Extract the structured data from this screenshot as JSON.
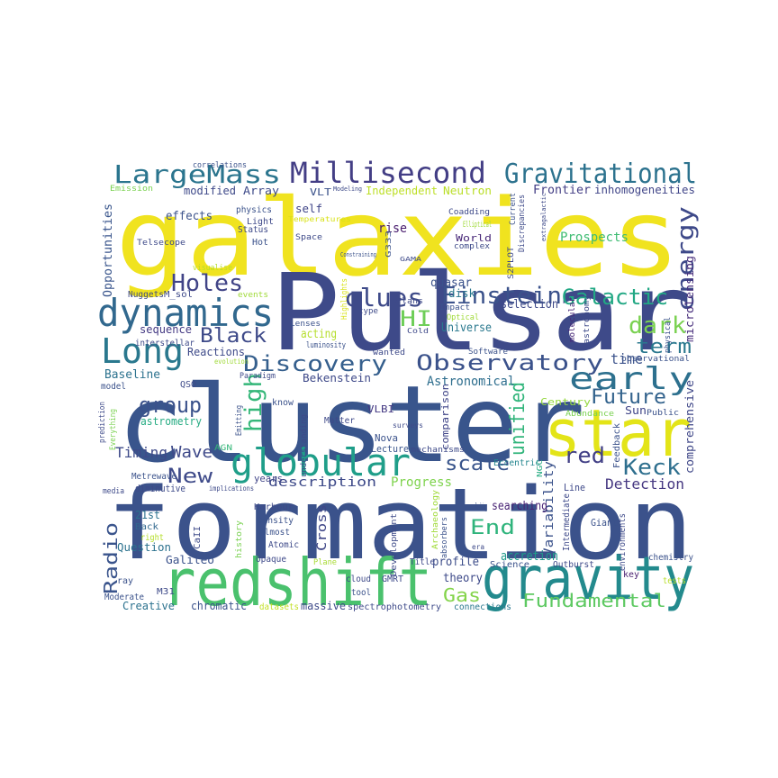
{
  "words": [
    {
      "text": "galaxies",
      "color": "#f0e31f"
    },
    {
      "text": "Pulsar",
      "color": "#3e4a89"
    },
    {
      "text": "cluster",
      "color": "#39558c"
    },
    {
      "text": "formation",
      "color": "#3b528b"
    },
    {
      "text": "redshift",
      "color": "#4ac16d"
    },
    {
      "text": "gravity",
      "color": "#238a8d"
    },
    {
      "text": "star",
      "color": "#e3e418"
    },
    {
      "text": "globular",
      "color": "#1f9e89"
    },
    {
      "text": "Millisecond",
      "color": "#433e85"
    },
    {
      "text": "Gravitational",
      "color": "#2c728e"
    },
    {
      "text": "LargeMass",
      "color": "#2b758e"
    },
    {
      "text": "dynamics",
      "color": "#31688e"
    },
    {
      "text": "Long",
      "color": "#2a788e"
    },
    {
      "text": "Einstein",
      "color": "#3b528b"
    },
    {
      "text": "Galactic",
      "color": "#22a884"
    },
    {
      "text": "Holes",
      "color": "#414487"
    },
    {
      "text": "clues",
      "color": "#3e4a89"
    },
    {
      "text": "early",
      "color": "#2d708e"
    },
    {
      "text": "energy",
      "color": "#3e4989"
    },
    {
      "text": "Observatory",
      "color": "#3b528b"
    },
    {
      "text": "Discovery",
      "color": "#355f8d"
    },
    {
      "text": "Black",
      "color": "#3e4a89"
    },
    {
      "text": "dark",
      "color": "#7ad151"
    },
    {
      "text": "term",
      "color": "#2a788e"
    },
    {
      "text": "HI",
      "color": "#6ece58"
    },
    {
      "text": "high",
      "color": "#35b779"
    },
    {
      "text": "group",
      "color": "#3b528b"
    },
    {
      "text": "Future",
      "color": "#33638d"
    },
    {
      "text": "Keck",
      "color": "#2e6f8e"
    },
    {
      "text": "red",
      "color": "#424086"
    },
    {
      "text": "New",
      "color": "#3e4a89"
    },
    {
      "text": "scale",
      "color": "#39558c"
    },
    {
      "text": "unified",
      "color": "#31b57b"
    },
    {
      "text": "Wave",
      "color": "#3e4989"
    },
    {
      "text": "Timing",
      "color": "#3e4a89"
    },
    {
      "text": "Detection",
      "color": "#453781"
    },
    {
      "text": "End",
      "color": "#2fb47c"
    },
    {
      "text": "Radio",
      "color": "#3a548c"
    },
    {
      "text": "Fundamental",
      "color": "#5ec962"
    },
    {
      "text": "Gas",
      "color": "#84d44b"
    },
    {
      "text": "Progress",
      "color": "#7fd34e"
    },
    {
      "text": "description",
      "color": "#3e4a89"
    },
    {
      "text": "Astronomical",
      "color": "#2e6e8e"
    },
    {
      "text": "Baseline",
      "color": "#2c728e"
    },
    {
      "text": "Cross",
      "color": "#3f4788"
    },
    {
      "text": "comparison",
      "color": "#404588"
    },
    {
      "text": "Variability",
      "color": "#3b528b"
    },
    {
      "text": "accretion",
      "color": "#1f9a8a"
    },
    {
      "text": "profile",
      "color": "#3d4d8a"
    },
    {
      "text": "searching",
      "color": "#482374"
    },
    {
      "text": "selection",
      "color": "#3e4989"
    },
    {
      "text": "Universe",
      "color": "#2a788e"
    },
    {
      "text": "quasar",
      "color": "#3b528b"
    },
    {
      "text": "disk",
      "color": "#2a788e"
    },
    {
      "text": "time",
      "color": "#3b528b"
    },
    {
      "text": "Prospects",
      "color": "#3fbc73"
    },
    {
      "text": "Frontier",
      "color": "#433e85"
    },
    {
      "text": "inhomogeneities",
      "color": "#404588"
    },
    {
      "text": "Opportunities",
      "color": "#39558c"
    },
    {
      "text": "Reactions",
      "color": "#3e4a89"
    },
    {
      "text": "sequence",
      "color": "#443983"
    },
    {
      "text": "Bekenstein",
      "color": "#3e4989"
    },
    {
      "text": "acting",
      "color": "#b5de2b"
    },
    {
      "text": "self",
      "color": "#404588"
    },
    {
      "text": "Independent",
      "color": "#bddf26"
    },
    {
      "text": "Neutron",
      "color": "#bade28"
    },
    {
      "text": "VLT",
      "color": "#3b528b"
    },
    {
      "text": "modified",
      "color": "#3e4989"
    },
    {
      "text": "Array",
      "color": "#3e4a89"
    },
    {
      "text": "effects",
      "color": "#3b528b"
    },
    {
      "text": "rise",
      "color": "#481b6d"
    },
    {
      "text": "World",
      "color": "#482878"
    },
    {
      "text": "Century",
      "color": "#95d840"
    },
    {
      "text": "Sun",
      "color": "#404588"
    },
    {
      "text": "comprehensive",
      "color": "#3f4788"
    },
    {
      "text": "microlensing",
      "color": "#472d7b"
    },
    {
      "text": "astrometry",
      "color": "#25ab82"
    },
    {
      "text": "VLBI",
      "color": "#443983"
    },
    {
      "text": "Nova",
      "color": "#3b528b"
    },
    {
      "text": "Lecture",
      "color": "#39558c"
    },
    {
      "text": "mechanisms",
      "color": "#3e4a89"
    },
    {
      "text": "Eccentric",
      "color": "#24868e"
    },
    {
      "text": "Line",
      "color": "#3e4989"
    },
    {
      "text": "Feedback",
      "color": "#3b528b"
    },
    {
      "text": "years",
      "color": "#404588"
    },
    {
      "text": "21st",
      "color": "#2c728e"
    },
    {
      "text": "Back",
      "color": "#31688e"
    },
    {
      "text": "right",
      "color": "#b5de2b"
    },
    {
      "text": "Question",
      "color": "#2c728e"
    },
    {
      "text": "Galileo",
      "color": "#3b528b"
    },
    {
      "text": "CaII",
      "color": "#3e4a89"
    },
    {
      "text": "Harbour",
      "color": "#3e4a89"
    },
    {
      "text": "Density",
      "color": "#3b528b"
    },
    {
      "text": "Almost",
      "color": "#3b528b"
    },
    {
      "text": "Atomic",
      "color": "#3e4a89"
    },
    {
      "text": "Opaque",
      "color": "#3e4989"
    },
    {
      "text": "Plane",
      "color": "#a8db34"
    },
    {
      "text": "cloud",
      "color": "#3e4a89"
    },
    {
      "text": "GMRT",
      "color": "#3e4a89"
    },
    {
      "text": "theory",
      "color": "#3e4a89"
    },
    {
      "text": "tool",
      "color": "#3b528b"
    },
    {
      "text": "Title",
      "color": "#3e4989"
    },
    {
      "text": "Resolving",
      "color": "#3b528b"
    },
    {
      "text": "Science",
      "color": "#3b528b"
    },
    {
      "text": "Intermediate",
      "color": "#3e4989"
    },
    {
      "text": "Giant",
      "color": "#3b528b"
    },
    {
      "text": "environments",
      "color": "#3e4a89"
    },
    {
      "text": "chemistry",
      "color": "#3b528b"
    },
    {
      "text": "Outburst",
      "color": "#3e4989"
    },
    {
      "text": "key",
      "color": "#481f70"
    },
    {
      "text": "Creative",
      "color": "#2c728e"
    },
    {
      "text": "chromatic",
      "color": "#3b528b"
    },
    {
      "text": "massive",
      "color": "#3e4a89"
    },
    {
      "text": "spectrophotometry",
      "color": "#3e4a89"
    },
    {
      "text": "datasets",
      "color": "#c2df23"
    },
    {
      "text": "connections",
      "color": "#2a788e"
    },
    {
      "text": "Moderate",
      "color": "#3b528b"
    },
    {
      "text": "M31",
      "color": "#3e4a89"
    },
    {
      "text": "ray",
      "color": "#3b528b"
    },
    {
      "text": "media",
      "color": "#3e4a89"
    },
    {
      "text": "diminutive",
      "color": "#3e4a89"
    },
    {
      "text": "Metrewave",
      "color": "#3b528b"
    },
    {
      "text": "implications",
      "color": "#3e4a89"
    },
    {
      "text": "Emitting",
      "color": "#3b528b"
    },
    {
      "text": "AGN",
      "color": "#35b779"
    },
    {
      "text": "history",
      "color": "#7ad151"
    },
    {
      "text": "understanding",
      "color": "#3e4a89"
    },
    {
      "text": "Matter",
      "color": "#3e4989"
    },
    {
      "text": "know",
      "color": "#3b528b"
    },
    {
      "text": "QSO",
      "color": "#3e4a89"
    },
    {
      "text": "model",
      "color": "#3b528b"
    },
    {
      "text": "prediction",
      "color": "#3e4a89"
    },
    {
      "text": "Everything",
      "color": "#7ad151"
    },
    {
      "text": "Paradigm",
      "color": "#3e4989"
    },
    {
      "text": "evolution",
      "color": "#a0da39"
    },
    {
      "text": "luminosity",
      "color": "#3b528b"
    },
    {
      "text": "interstellar",
      "color": "#3e4a89"
    },
    {
      "text": "Lenses",
      "color": "#3b528b"
    },
    {
      "text": "Highlights",
      "color": "#d8e219"
    },
    {
      "text": "Plans",
      "color": "#3e4a89"
    },
    {
      "text": "type",
      "color": "#3e4a89"
    },
    {
      "text": "Cold",
      "color": "#3e4989"
    },
    {
      "text": "Impact",
      "color": "#3b528b"
    },
    {
      "text": "Optical",
      "color": "#a0da39"
    },
    {
      "text": "wanted",
      "color": "#3e4a89"
    },
    {
      "text": "Software",
      "color": "#3b528b"
    },
    {
      "text": "molecular",
      "color": "#482878"
    },
    {
      "text": "astronomy",
      "color": "#3e4a89"
    },
    {
      "text": "physical",
      "color": "#3b528b"
    },
    {
      "text": "observational",
      "color": "#3b528b"
    },
    {
      "text": "tests",
      "color": "#b8de29"
    },
    {
      "text": "Abundance",
      "color": "#7ad151"
    },
    {
      "text": "Public",
      "color": "#3b528b"
    },
    {
      "text": "surveys",
      "color": "#3e4a89"
    },
    {
      "text": "NGC",
      "color": "#25ab82"
    },
    {
      "text": "absorbers",
      "color": "#3b528b"
    },
    {
      "text": "Archaeology",
      "color": "#a0da39"
    },
    {
      "text": "Development",
      "color": "#3e4a89"
    },
    {
      "text": "era",
      "color": "#3e4a89"
    },
    {
      "text": "Nuggets",
      "color": "#3e4a89"
    },
    {
      "text": "M_sol",
      "color": "#3e4989"
    },
    {
      "text": "events",
      "color": "#a0da39"
    },
    {
      "text": "visualise",
      "color": "#b8de29"
    },
    {
      "text": "Hot",
      "color": "#3b528b"
    },
    {
      "text": "Status",
      "color": "#3e4a89"
    },
    {
      "text": "Light",
      "color": "#3e4989"
    },
    {
      "text": "physics",
      "color": "#3b528b"
    },
    {
      "text": "Space",
      "color": "#3e4a89"
    },
    {
      "text": "Temperatures",
      "color": "#d8e219"
    },
    {
      "text": "Telsecope",
      "color": "#3e4a89"
    },
    {
      "text": "Emission",
      "color": "#7ad151"
    },
    {
      "text": "correlations",
      "color": "#3b528b"
    },
    {
      "text": "Modeling",
      "color": "#3e4a89"
    },
    {
      "text": "Constraining",
      "color": "#3b528b"
    },
    {
      "text": "Coadding",
      "color": "#3e4a89"
    },
    {
      "text": "Elliptical",
      "color": "#a0da39"
    },
    {
      "text": "G333",
      "color": "#3b528b"
    },
    {
      "text": "complex",
      "color": "#3e4a89"
    },
    {
      "text": "GAMA",
      "color": "#3e4a89"
    },
    {
      "text": "Discrepancies",
      "color": "#3e4a89"
    },
    {
      "text": "S2PLOT",
      "color": "#3e4a89"
    },
    {
      "text": "Current",
      "color": "#3b528b"
    },
    {
      "text": "extragalactic",
      "color": "#3e4a89"
    }
  ]
}
